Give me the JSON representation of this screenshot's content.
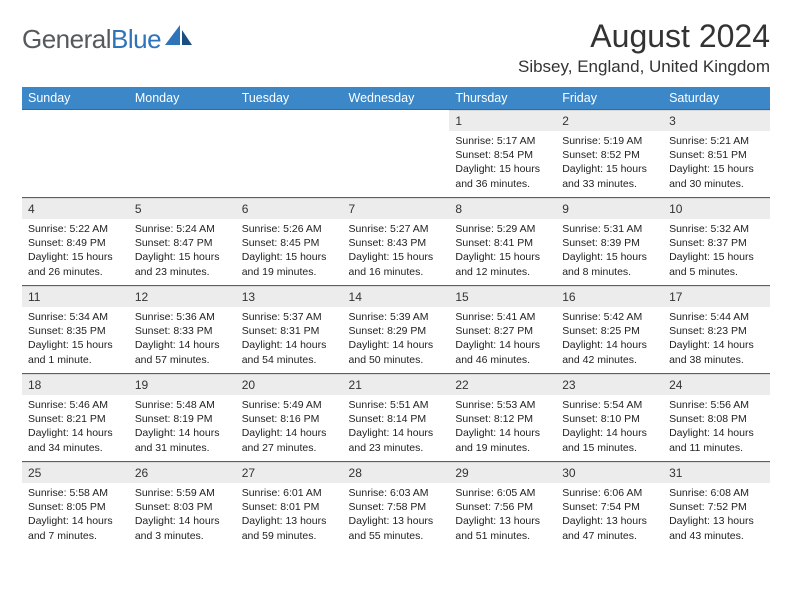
{
  "brand": {
    "name_a": "General",
    "name_b": "Blue"
  },
  "title": {
    "month": "August 2024",
    "location": "Sibsey, England, United Kingdom"
  },
  "colors": {
    "header_bg": "#3b87c8",
    "header_text": "#ffffff",
    "row_divider": "#2f6aa3",
    "daynum_bg": "#ececec",
    "logo_gray": "#555a5f",
    "logo_blue": "#2f73b9"
  },
  "weekdays": [
    "Sunday",
    "Monday",
    "Tuesday",
    "Wednesday",
    "Thursday",
    "Friday",
    "Saturday"
  ],
  "labels": {
    "sunrise": "Sunrise:",
    "sunset": "Sunset:",
    "daylight": "Daylight:"
  },
  "weeks": [
    [
      {
        "empty": true
      },
      {
        "empty": true
      },
      {
        "empty": true
      },
      {
        "empty": true
      },
      {
        "n": "1",
        "sr": "5:17 AM",
        "ss": "8:54 PM",
        "dl": "15 hours and 36 minutes."
      },
      {
        "n": "2",
        "sr": "5:19 AM",
        "ss": "8:52 PM",
        "dl": "15 hours and 33 minutes."
      },
      {
        "n": "3",
        "sr": "5:21 AM",
        "ss": "8:51 PM",
        "dl": "15 hours and 30 minutes."
      }
    ],
    [
      {
        "n": "4",
        "sr": "5:22 AM",
        "ss": "8:49 PM",
        "dl": "15 hours and 26 minutes."
      },
      {
        "n": "5",
        "sr": "5:24 AM",
        "ss": "8:47 PM",
        "dl": "15 hours and 23 minutes."
      },
      {
        "n": "6",
        "sr": "5:26 AM",
        "ss": "8:45 PM",
        "dl": "15 hours and 19 minutes."
      },
      {
        "n": "7",
        "sr": "5:27 AM",
        "ss": "8:43 PM",
        "dl": "15 hours and 16 minutes."
      },
      {
        "n": "8",
        "sr": "5:29 AM",
        "ss": "8:41 PM",
        "dl": "15 hours and 12 minutes."
      },
      {
        "n": "9",
        "sr": "5:31 AM",
        "ss": "8:39 PM",
        "dl": "15 hours and 8 minutes."
      },
      {
        "n": "10",
        "sr": "5:32 AM",
        "ss": "8:37 PM",
        "dl": "15 hours and 5 minutes."
      }
    ],
    [
      {
        "n": "11",
        "sr": "5:34 AM",
        "ss": "8:35 PM",
        "dl": "15 hours and 1 minute."
      },
      {
        "n": "12",
        "sr": "5:36 AM",
        "ss": "8:33 PM",
        "dl": "14 hours and 57 minutes."
      },
      {
        "n": "13",
        "sr": "5:37 AM",
        "ss": "8:31 PM",
        "dl": "14 hours and 54 minutes."
      },
      {
        "n": "14",
        "sr": "5:39 AM",
        "ss": "8:29 PM",
        "dl": "14 hours and 50 minutes."
      },
      {
        "n": "15",
        "sr": "5:41 AM",
        "ss": "8:27 PM",
        "dl": "14 hours and 46 minutes."
      },
      {
        "n": "16",
        "sr": "5:42 AM",
        "ss": "8:25 PM",
        "dl": "14 hours and 42 minutes."
      },
      {
        "n": "17",
        "sr": "5:44 AM",
        "ss": "8:23 PM",
        "dl": "14 hours and 38 minutes."
      }
    ],
    [
      {
        "n": "18",
        "sr": "5:46 AM",
        "ss": "8:21 PM",
        "dl": "14 hours and 34 minutes."
      },
      {
        "n": "19",
        "sr": "5:48 AM",
        "ss": "8:19 PM",
        "dl": "14 hours and 31 minutes."
      },
      {
        "n": "20",
        "sr": "5:49 AM",
        "ss": "8:16 PM",
        "dl": "14 hours and 27 minutes."
      },
      {
        "n": "21",
        "sr": "5:51 AM",
        "ss": "8:14 PM",
        "dl": "14 hours and 23 minutes."
      },
      {
        "n": "22",
        "sr": "5:53 AM",
        "ss": "8:12 PM",
        "dl": "14 hours and 19 minutes."
      },
      {
        "n": "23",
        "sr": "5:54 AM",
        "ss": "8:10 PM",
        "dl": "14 hours and 15 minutes."
      },
      {
        "n": "24",
        "sr": "5:56 AM",
        "ss": "8:08 PM",
        "dl": "14 hours and 11 minutes."
      }
    ],
    [
      {
        "n": "25",
        "sr": "5:58 AM",
        "ss": "8:05 PM",
        "dl": "14 hours and 7 minutes."
      },
      {
        "n": "26",
        "sr": "5:59 AM",
        "ss": "8:03 PM",
        "dl": "14 hours and 3 minutes."
      },
      {
        "n": "27",
        "sr": "6:01 AM",
        "ss": "8:01 PM",
        "dl": "13 hours and 59 minutes."
      },
      {
        "n": "28",
        "sr": "6:03 AM",
        "ss": "7:58 PM",
        "dl": "13 hours and 55 minutes."
      },
      {
        "n": "29",
        "sr": "6:05 AM",
        "ss": "7:56 PM",
        "dl": "13 hours and 51 minutes."
      },
      {
        "n": "30",
        "sr": "6:06 AM",
        "ss": "7:54 PM",
        "dl": "13 hours and 47 minutes."
      },
      {
        "n": "31",
        "sr": "6:08 AM",
        "ss": "7:52 PM",
        "dl": "13 hours and 43 minutes."
      }
    ]
  ]
}
